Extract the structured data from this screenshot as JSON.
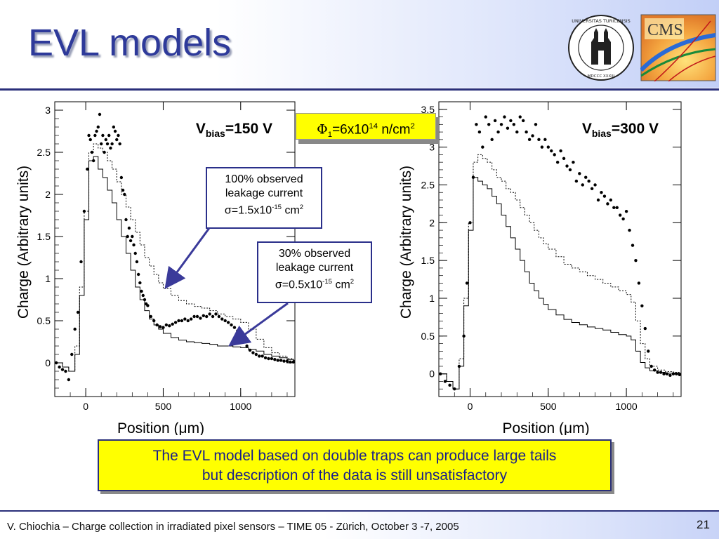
{
  "slide": {
    "title": "EVL models",
    "page_number": "21",
    "footer": "V. Chiochia – Charge collection in irradiated pixel sensors – TIME 05 - Zürich, October 3 -7, 2005"
  },
  "logos": {
    "uzh": "UNIVERSITAS TURICENSIS",
    "uzh_year": "MDCCC XXXIII",
    "cms": "CMS"
  },
  "fluence": {
    "symbol": "Φ",
    "sub": "1",
    "text": "=6x10",
    "exp": "14",
    "unit": " n/cm",
    "unit_exp": "2"
  },
  "annotations": {
    "box1": {
      "line1": "100% observed",
      "line2": "leakage current",
      "sigma": "σ=1.5x10",
      "exp": "-15",
      "unit": " cm",
      "unit_exp": "2"
    },
    "box2": {
      "line1": "30% observed",
      "line2": "leakage current",
      "sigma": "σ=0.5x10",
      "exp": "-15",
      "unit": " cm",
      "unit_exp": "2"
    }
  },
  "conclusion": {
    "line1": "The EVL model based on double traps can produce large tails",
    "line2": "but description of the data is still unsatisfactory"
  },
  "colors": {
    "title": "#2e3a9a",
    "accent": "#2a2f7a",
    "highlight": "#ffff00",
    "conclusion_text": "#1a1f8a"
  },
  "chart_data": [
    {
      "type": "scatter",
      "title": "",
      "label_main": "V",
      "label_sub": "bias",
      "label_value": "=150 V",
      "xlabel": "Position (μm)",
      "ylabel": "Charge (Arbitrary units)",
      "xlim": [
        -200,
        1350
      ],
      "ylim": [
        -0.4,
        3.1
      ],
      "xticks": [
        0,
        500,
        1000
      ],
      "yticks": [
        0,
        0.5,
        1,
        1.5,
        2,
        2.5,
        3
      ],
      "xtick_labels": [
        "0",
        "500",
        "1000"
      ],
      "ytick_labels": [
        "0",
        "0.5",
        "1",
        "1.5",
        "2",
        "2.5",
        "3"
      ],
      "series": [
        {
          "style": "points",
          "x": [
            -190,
            -170,
            -150,
            -130,
            -110,
            -90,
            -70,
            -50,
            -30,
            -10,
            10,
            20,
            30,
            40,
            50,
            60,
            70,
            80,
            90,
            100,
            110,
            120,
            130,
            140,
            150,
            160,
            170,
            180,
            190,
            200,
            210,
            220,
            230,
            240,
            250,
            260,
            270,
            280,
            290,
            300,
            310,
            320,
            330,
            340,
            350,
            360,
            370,
            380,
            390,
            400,
            420,
            440,
            460,
            480,
            500,
            520,
            540,
            560,
            580,
            600,
            620,
            640,
            660,
            680,
            700,
            720,
            740,
            760,
            780,
            800,
            820,
            840,
            860,
            880,
            900,
            920,
            940,
            960,
            980,
            1000,
            1020,
            1040,
            1060,
            1080,
            1100,
            1120,
            1140,
            1160,
            1180,
            1200,
            1220,
            1240,
            1260,
            1280,
            1300,
            1320,
            1340
          ],
          "y": [
            0.0,
            -0.05,
            -0.08,
            -0.1,
            -0.2,
            0.1,
            0.4,
            0.6,
            1.2,
            1.8,
            2.3,
            2.7,
            2.65,
            2.5,
            2.4,
            2.7,
            2.75,
            2.8,
            2.95,
            2.6,
            2.7,
            2.5,
            2.65,
            2.6,
            2.7,
            2.55,
            2.6,
            2.8,
            2.75,
            2.65,
            2.7,
            2.6,
            2.2,
            2.05,
            2.0,
            1.7,
            1.5,
            1.6,
            1.45,
            1.5,
            1.4,
            1.3,
            1.2,
            1.05,
            0.95,
            0.85,
            0.8,
            0.75,
            0.7,
            0.68,
            0.55,
            0.5,
            0.45,
            0.43,
            0.42,
            0.45,
            0.44,
            0.46,
            0.48,
            0.5,
            0.5,
            0.52,
            0.5,
            0.52,
            0.55,
            0.55,
            0.53,
            0.56,
            0.55,
            0.58,
            0.55,
            0.58,
            0.55,
            0.52,
            0.5,
            0.48,
            0.45,
            0.42,
            0.38,
            0.32,
            0.25,
            0.2,
            0.15,
            0.12,
            0.1,
            0.08,
            0.08,
            0.06,
            0.05,
            0.05,
            0.04,
            0.03,
            0.03,
            0.02,
            0.02,
            0.01,
            0.01
          ]
        },
        {
          "style": "dotted",
          "x": [
            -190,
            -150,
            -110,
            -70,
            -40,
            -10,
            20,
            50,
            80,
            110,
            140,
            170,
            200,
            230,
            260,
            290,
            320,
            350,
            380,
            410,
            440,
            470,
            500,
            550,
            600,
            650,
            700,
            750,
            800,
            850,
            900,
            950,
            1000,
            1050,
            1100,
            1150,
            1200,
            1250,
            1300,
            1340
          ],
          "y": [
            0.0,
            -0.05,
            -0.1,
            0.2,
            0.9,
            1.8,
            2.5,
            2.6,
            2.55,
            2.5,
            2.4,
            2.3,
            2.15,
            2.0,
            1.85,
            1.7,
            1.55,
            1.4,
            1.25,
            1.15,
            1.05,
            0.95,
            0.88,
            0.8,
            0.74,
            0.7,
            0.67,
            0.65,
            0.62,
            0.58,
            0.55,
            0.52,
            0.48,
            0.4,
            0.28,
            0.18,
            0.12,
            0.08,
            0.05,
            0.03
          ]
        },
        {
          "style": "solid",
          "x": [
            -190,
            -150,
            -110,
            -70,
            -40,
            -10,
            20,
            50,
            80,
            110,
            140,
            170,
            200,
            230,
            260,
            290,
            320,
            350,
            380,
            410,
            440,
            470,
            500,
            550,
            600,
            650,
            700,
            750,
            800,
            850,
            900,
            950,
            1000,
            1050,
            1100,
            1150,
            1200,
            1250,
            1300,
            1340
          ],
          "y": [
            0.0,
            -0.05,
            -0.1,
            0.1,
            0.8,
            1.7,
            2.4,
            2.45,
            2.3,
            2.2,
            2.05,
            1.9,
            1.7,
            1.5,
            1.3,
            1.1,
            0.9,
            0.75,
            0.62,
            0.52,
            0.45,
            0.4,
            0.35,
            0.3,
            0.27,
            0.25,
            0.24,
            0.23,
            0.22,
            0.2,
            0.2,
            0.19,
            0.18,
            0.16,
            0.14,
            0.1,
            0.08,
            0.06,
            0.04,
            0.03
          ]
        }
      ]
    },
    {
      "type": "scatter",
      "title": "",
      "label_main": "V",
      "label_sub": "bias",
      "label_value": "=300 V",
      "xlabel": "Position (μm)",
      "ylabel": "Charge (Arbitrary units)",
      "xlim": [
        -200,
        1350
      ],
      "ylim": [
        -0.3,
        3.6
      ],
      "xticks": [
        0,
        500,
        1000
      ],
      "yticks": [
        0,
        0.5,
        1,
        1.5,
        2,
        2.5,
        3,
        3.5
      ],
      "xtick_labels": [
        "0",
        "500",
        "1000"
      ],
      "ytick_labels": [
        "0",
        "0.5",
        "1",
        "1.5",
        "2",
        "2.5",
        "3",
        "3.5"
      ],
      "series": [
        {
          "style": "points",
          "x": [
            -190,
            -160,
            -130,
            -100,
            -70,
            -40,
            -20,
            0,
            20,
            40,
            60,
            80,
            100,
            120,
            140,
            160,
            180,
            200,
            220,
            240,
            260,
            280,
            300,
            320,
            340,
            360,
            380,
            400,
            420,
            440,
            460,
            480,
            500,
            520,
            540,
            560,
            580,
            600,
            620,
            640,
            660,
            680,
            700,
            720,
            740,
            760,
            780,
            800,
            820,
            840,
            860,
            880,
            900,
            920,
            940,
            960,
            980,
            1000,
            1020,
            1040,
            1060,
            1080,
            1100,
            1120,
            1140,
            1160,
            1180,
            1200,
            1220,
            1240,
            1260,
            1280,
            1300,
            1320,
            1340
          ],
          "y": [
            0.0,
            -0.1,
            -0.15,
            -0.2,
            0.1,
            0.5,
            1.2,
            2.0,
            2.6,
            3.3,
            3.2,
            3.0,
            3.4,
            3.3,
            3.1,
            3.35,
            3.2,
            3.3,
            3.4,
            3.25,
            3.35,
            3.3,
            3.2,
            3.4,
            3.35,
            3.2,
            3.1,
            3.15,
            3.3,
            3.1,
            3.0,
            3.1,
            3.0,
            2.95,
            2.9,
            2.8,
            2.95,
            2.85,
            2.75,
            2.7,
            2.8,
            2.55,
            2.65,
            2.5,
            2.6,
            2.55,
            2.45,
            2.5,
            2.3,
            2.4,
            2.35,
            2.25,
            2.3,
            2.2,
            2.2,
            2.1,
            2.05,
            2.15,
            1.9,
            1.7,
            1.5,
            1.2,
            0.9,
            0.6,
            0.3,
            0.1,
            0.05,
            0.02,
            0.02,
            0.0,
            0.0,
            -0.02,
            0.0,
            0.0,
            -0.01
          ]
        },
        {
          "style": "dotted",
          "x": [
            -190,
            -150,
            -110,
            -70,
            -40,
            -10,
            20,
            50,
            80,
            110,
            140,
            170,
            200,
            230,
            260,
            290,
            320,
            350,
            380,
            410,
            440,
            470,
            500,
            550,
            600,
            650,
            700,
            750,
            800,
            850,
            900,
            950,
            1000,
            1030,
            1060,
            1090,
            1120,
            1150,
            1200,
            1250,
            1300,
            1340
          ],
          "y": [
            0.0,
            -0.1,
            -0.2,
            0.2,
            1.0,
            2.0,
            2.8,
            2.9,
            2.85,
            2.8,
            2.7,
            2.6,
            2.55,
            2.45,
            2.4,
            2.3,
            2.2,
            2.1,
            2.0,
            1.9,
            1.8,
            1.72,
            1.65,
            1.55,
            1.45,
            1.4,
            1.35,
            1.3,
            1.25,
            1.2,
            1.15,
            1.1,
            1.05,
            0.95,
            0.7,
            0.4,
            0.2,
            0.1,
            0.05,
            0.03,
            0.02,
            0.01
          ]
        },
        {
          "style": "solid",
          "x": [
            -190,
            -150,
            -110,
            -70,
            -40,
            -10,
            20,
            50,
            80,
            110,
            140,
            170,
            200,
            230,
            260,
            290,
            320,
            350,
            380,
            410,
            440,
            470,
            500,
            550,
            600,
            650,
            700,
            750,
            800,
            850,
            900,
            950,
            1000,
            1030,
            1060,
            1090,
            1120,
            1150,
            1200,
            1250,
            1300,
            1340
          ],
          "y": [
            0.0,
            -0.1,
            -0.2,
            0.1,
            0.9,
            1.9,
            2.6,
            2.55,
            2.5,
            2.45,
            2.35,
            2.25,
            2.1,
            1.95,
            1.8,
            1.65,
            1.5,
            1.35,
            1.2,
            1.1,
            1.0,
            0.92,
            0.85,
            0.78,
            0.72,
            0.68,
            0.65,
            0.62,
            0.6,
            0.58,
            0.55,
            0.52,
            0.5,
            0.45,
            0.3,
            0.15,
            0.08,
            0.04,
            0.02,
            0.01,
            0.01,
            0.0
          ]
        }
      ]
    }
  ]
}
